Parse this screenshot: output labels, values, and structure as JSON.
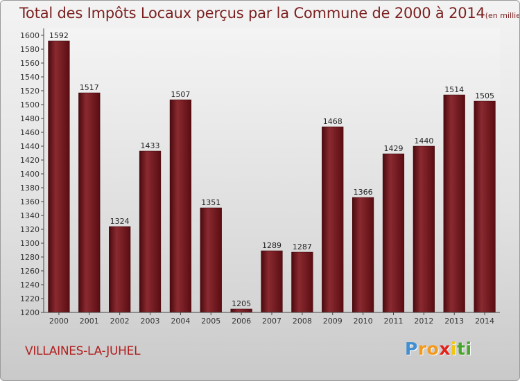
{
  "chart_data": {
    "type": "bar",
    "title": "Total des Impôts Locaux perçus par la Commune de 2000 à 2014",
    "unit_note": "(en milliers d'€)",
    "categories": [
      "2000",
      "2001",
      "2002",
      "2003",
      "2004",
      "2005",
      "2006",
      "2007",
      "2008",
      "2009",
      "2010",
      "2011",
      "2012",
      "2013",
      "2014"
    ],
    "values": [
      1592,
      1517,
      1324,
      1433,
      1507,
      1351,
      1205,
      1289,
      1287,
      1468,
      1366,
      1429,
      1440,
      1514,
      1505
    ],
    "ylim": [
      1200,
      1600
    ],
    "yticks": [
      1200,
      1220,
      1240,
      1260,
      1280,
      1300,
      1320,
      1340,
      1360,
      1380,
      1400,
      1420,
      1440,
      1460,
      1480,
      1500,
      1520,
      1540,
      1560,
      1580,
      1600
    ],
    "xlabel": "",
    "ylabel": "",
    "grid": false,
    "bar_color": "#6b1218"
  },
  "commune": "VILLAINES-LA-JUHEL",
  "logo": {
    "letters": [
      "P",
      "r",
      "o",
      "x",
      "i",
      "t",
      "i"
    ],
    "colors": [
      "#3f8fd2",
      "#f39a1e",
      "#f39a1e",
      "#e2231a",
      "#f2c40a",
      "#4aa52e",
      "#4aa52e"
    ]
  }
}
